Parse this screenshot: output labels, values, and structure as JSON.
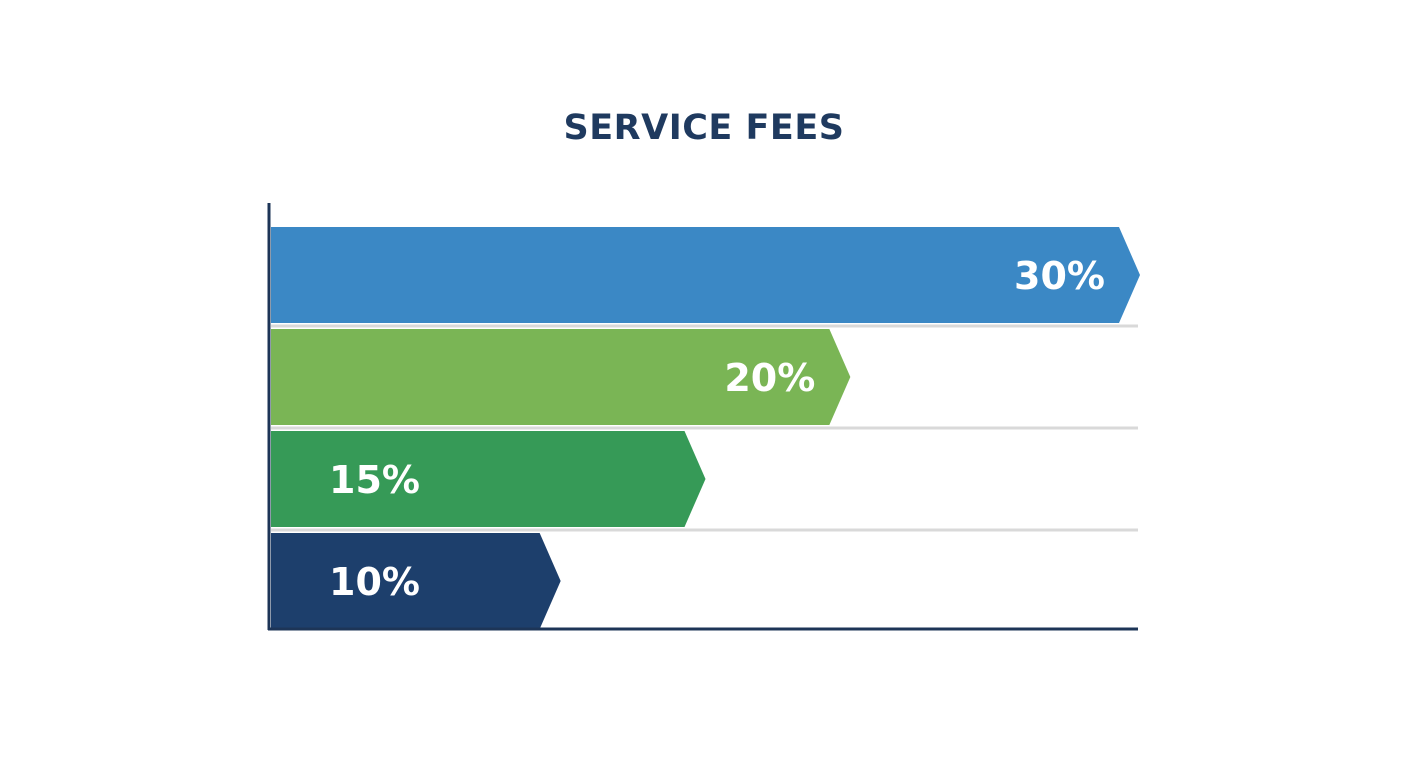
{
  "chart_data": {
    "type": "bar",
    "orientation": "horizontal",
    "title": "SERVICE FEES",
    "xlabel": "",
    "ylabel": "",
    "values": [
      30,
      20,
      15,
      10
    ],
    "data_labels": [
      "30%",
      "20%",
      "15%",
      "10%"
    ],
    "colors": [
      "#3b88c5",
      "#7ab555",
      "#369a57",
      "#1d3f6c"
    ],
    "xlim": [
      0,
      30
    ],
    "grid": true,
    "legend": "none",
    "axis_color": "#1d3557",
    "grid_color": "#d9d9d9",
    "title_color": "#1f3a5f"
  }
}
